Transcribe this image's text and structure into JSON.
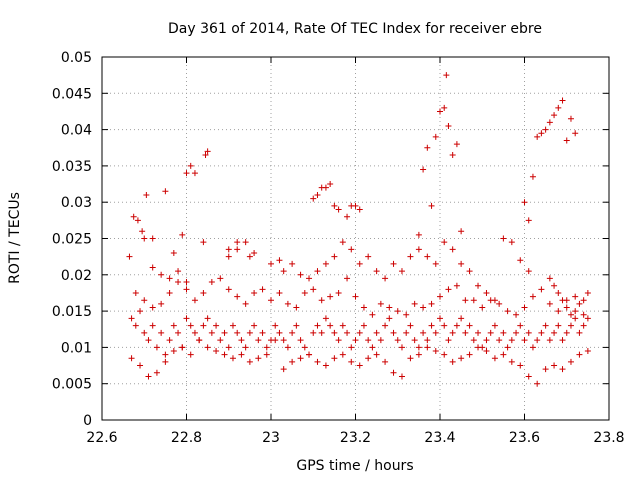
{
  "chart_data": {
    "type": "scatter",
    "title": "Day 361 of 2014, Rate Of TEC Index for receiver ebre",
    "xlabel": "GPS time / hours",
    "ylabel": "ROTI / TECUs",
    "xlim": [
      22.6,
      23.8
    ],
    "ylim": [
      0,
      0.05
    ],
    "xticks": [
      "22.6",
      "22.8",
      "23",
      "23.2",
      "23.4",
      "23.6",
      "23.8"
    ],
    "yticks": [
      "0",
      "0.005",
      "0.01",
      "0.015",
      "0.02",
      "0.025",
      "0.03",
      "0.035",
      "0.04",
      "0.045",
      "0.05"
    ],
    "grid": true,
    "marker": "+",
    "series": [
      {
        "name": "ROTI",
        "color": "#cc0000",
        "x": [
          22.67,
          22.68,
          22.69,
          22.7,
          22.71,
          22.72,
          22.73,
          22.74,
          22.75,
          22.76,
          22.77,
          22.78,
          22.79,
          22.8,
          22.81,
          22.82,
          22.83,
          22.84,
          22.85,
          22.86,
          22.87,
          22.88,
          22.89,
          22.9,
          22.91,
          22.92,
          22.93,
          22.94,
          22.95,
          22.96,
          22.97,
          22.98,
          22.99,
          23.0,
          23.01,
          23.02,
          23.03,
          23.04,
          23.05,
          23.06,
          23.07,
          23.08,
          23.09,
          23.1,
          23.11,
          23.12,
          23.13,
          23.14,
          23.15,
          23.16,
          23.17,
          23.18,
          23.19,
          23.2,
          23.21,
          23.22,
          23.23,
          23.24,
          23.25,
          23.26,
          23.27,
          23.28,
          23.29,
          23.3,
          23.31,
          23.32,
          23.33,
          23.34,
          23.35,
          23.36,
          23.37,
          23.38,
          23.39,
          23.4,
          23.41,
          23.42,
          23.43,
          23.44,
          23.45,
          23.46,
          23.47,
          23.48,
          23.49,
          23.5,
          23.51,
          23.52,
          23.53,
          23.54,
          23.55,
          23.56,
          23.57,
          23.58,
          23.59,
          23.6,
          23.61,
          23.62,
          23.63,
          23.64,
          23.65,
          23.66,
          23.67,
          23.68,
          23.69,
          23.7,
          23.71,
          23.72,
          23.73,
          23.74,
          23.75,
          22.67,
          22.69,
          22.71,
          22.73,
          22.75,
          22.77,
          22.79,
          22.81,
          22.83,
          22.85,
          22.87,
          22.89,
          22.91,
          22.93,
          22.95,
          22.97,
          22.99,
          23.01,
          23.03,
          23.05,
          23.07,
          23.09,
          23.11,
          23.13,
          23.15,
          23.17,
          23.19,
          23.21,
          23.23,
          23.25,
          23.27,
          23.29,
          23.31,
          23.33,
          23.35,
          23.37,
          23.39,
          23.41,
          23.43,
          23.45,
          23.47,
          23.49,
          23.51,
          23.53,
          23.55,
          23.57,
          23.59,
          23.61,
          23.63,
          23.65,
          23.67,
          23.69,
          23.71,
          23.73,
          23.75,
          22.68,
          22.7,
          22.72,
          22.74,
          22.76,
          22.78,
          22.8,
          22.82,
          22.84,
          22.86,
          22.88,
          22.9,
          22.92,
          22.94,
          22.96,
          22.98,
          23.0,
          23.02,
          23.04,
          23.06,
          23.08,
          23.1,
          23.12,
          23.14,
          23.16,
          23.18,
          23.2,
          23.22,
          23.24,
          23.26,
          23.28,
          23.3,
          23.32,
          23.34,
          23.36,
          23.38,
          23.4,
          23.42,
          23.44,
          23.46,
          23.48,
          23.5,
          23.52,
          23.54,
          23.56,
          23.58,
          23.6,
          23.62,
          23.64,
          23.66,
          23.68,
          23.7,
          23.72,
          23.74,
          22.665,
          22.675,
          22.685,
          22.695,
          22.705,
          22.72,
          22.75,
          22.77,
          22.79,
          22.8,
          22.81,
          22.82,
          22.84,
          22.845,
          22.85,
          22.9,
          22.92,
          22.95,
          23.0,
          23.02,
          23.1,
          23.11,
          23.12,
          23.13,
          23.14,
          23.15,
          23.16,
          23.18,
          23.19,
          23.2,
          23.21,
          23.35,
          23.36,
          23.37,
          23.38,
          23.39,
          23.4,
          23.41,
          23.415,
          23.42,
          23.43,
          23.44,
          23.45,
          23.6,
          23.61,
          23.62,
          23.63,
          23.64,
          23.65,
          23.66,
          23.67,
          23.68,
          23.69,
          23.7,
          23.71,
          23.72,
          23.66,
          23.67,
          23.68,
          23.69,
          23.7,
          23.71,
          23.72,
          23.73,
          23.74,
          23.75,
          22.7,
          22.72,
          22.74,
          22.76,
          22.78,
          22.8,
          22.9,
          22.92,
          22.94,
          22.96,
          23.03,
          23.05,
          23.07,
          23.09,
          23.11,
          23.13,
          23.15,
          23.17,
          23.19,
          23.21,
          23.23,
          23.25,
          23.27,
          23.29,
          23.31,
          23.33,
          23.35,
          23.37,
          23.39,
          23.41,
          23.43,
          23.45,
          23.47,
          23.49,
          23.51,
          23.53,
          23.55,
          23.57,
          23.59,
          23.61
        ],
        "y": [
          0.014,
          0.013,
          0.015,
          0.012,
          0.011,
          0.013,
          0.01,
          0.012,
          0.009,
          0.011,
          0.013,
          0.012,
          0.01,
          0.014,
          0.013,
          0.012,
          0.011,
          0.013,
          0.014,
          0.012,
          0.013,
          0.011,
          0.012,
          0.01,
          0.013,
          0.012,
          0.011,
          0.01,
          0.012,
          0.013,
          0.011,
          0.012,
          0.01,
          0.011,
          0.013,
          0.012,
          0.011,
          0.01,
          0.012,
          0.013,
          0.011,
          0.01,
          0.009,
          0.012,
          0.013,
          0.012,
          0.014,
          0.013,
          0.012,
          0.011,
          0.013,
          0.012,
          0.01,
          0.011,
          0.012,
          0.013,
          0.011,
          0.01,
          0.012,
          0.011,
          0.013,
          0.014,
          0.012,
          0.011,
          0.01,
          0.012,
          0.013,
          0.011,
          0.01,
          0.012,
          0.011,
          0.013,
          0.012,
          0.014,
          0.013,
          0.011,
          0.012,
          0.013,
          0.014,
          0.012,
          0.013,
          0.011,
          0.012,
          0.01,
          0.011,
          0.012,
          0.013,
          0.011,
          0.012,
          0.01,
          0.011,
          0.012,
          0.013,
          0.011,
          0.012,
          0.01,
          0.011,
          0.012,
          0.013,
          0.011,
          0.012,
          0.013,
          0.011,
          0.012,
          0.013,
          0.014,
          0.012,
          0.013,
          0.014,
          0.0085,
          0.0075,
          0.006,
          0.0065,
          0.008,
          0.0095,
          0.01,
          0.009,
          0.011,
          0.01,
          0.0095,
          0.009,
          0.0085,
          0.009,
          0.008,
          0.0085,
          0.009,
          0.011,
          0.007,
          0.008,
          0.0085,
          0.009,
          0.008,
          0.0075,
          0.0085,
          0.009,
          0.008,
          0.0075,
          0.0085,
          0.009,
          0.008,
          0.0065,
          0.006,
          0.0085,
          0.009,
          0.01,
          0.0095,
          0.009,
          0.008,
          0.0085,
          0.009,
          0.01,
          0.0095,
          0.0085,
          0.009,
          0.008,
          0.0075,
          0.006,
          0.005,
          0.007,
          0.0075,
          0.007,
          0.008,
          0.009,
          0.0095,
          0.0175,
          0.0165,
          0.0155,
          0.016,
          0.0175,
          0.019,
          0.018,
          0.0165,
          0.0175,
          0.019,
          0.0195,
          0.018,
          0.017,
          0.016,
          0.0175,
          0.018,
          0.0165,
          0.0175,
          0.016,
          0.0155,
          0.0175,
          0.018,
          0.0165,
          0.017,
          0.0175,
          0.0195,
          0.017,
          0.0155,
          0.0145,
          0.016,
          0.0155,
          0.015,
          0.0145,
          0.016,
          0.0155,
          0.016,
          0.017,
          0.018,
          0.0185,
          0.0165,
          0.0165,
          0.0155,
          0.0165,
          0.016,
          0.015,
          0.0145,
          0.0155,
          0.017,
          0.018,
          0.016,
          0.015,
          0.0165,
          0.017,
          0.0145,
          0.0225,
          0.028,
          0.0275,
          0.026,
          0.031,
          0.025,
          0.0315,
          0.023,
          0.0255,
          0.034,
          0.035,
          0.034,
          0.0245,
          0.0365,
          0.037,
          0.0235,
          0.0245,
          0.0225,
          0.0215,
          0.022,
          0.0305,
          0.031,
          0.032,
          0.032,
          0.0325,
          0.0295,
          0.029,
          0.028,
          0.0295,
          0.0295,
          0.029,
          0.0255,
          0.0345,
          0.0375,
          0.0295,
          0.039,
          0.0425,
          0.043,
          0.0475,
          0.0405,
          0.0365,
          0.038,
          0.026,
          0.03,
          0.0275,
          0.0335,
          0.039,
          0.0395,
          0.04,
          0.041,
          0.042,
          0.043,
          0.044,
          0.0385,
          0.0415,
          0.0395,
          0.0195,
          0.0185,
          0.0175,
          0.0165,
          0.0155,
          0.0145,
          0.015,
          0.016,
          0.0165,
          0.0175,
          0.025,
          0.021,
          0.02,
          0.0195,
          0.0205,
          0.019,
          0.0225,
          0.0235,
          0.0245,
          0.023,
          0.0205,
          0.0215,
          0.02,
          0.0195,
          0.0205,
          0.0215,
          0.0225,
          0.0245,
          0.0235,
          0.0215,
          0.0225,
          0.0205,
          0.0195,
          0.0215,
          0.0205,
          0.0225,
          0.0235,
          0.0225,
          0.0215,
          0.0245,
          0.0235,
          0.0215,
          0.0205,
          0.0185,
          0.0175,
          0.0165,
          0.025,
          0.0245,
          0.022,
          0.0205
        ]
      }
    ]
  }
}
